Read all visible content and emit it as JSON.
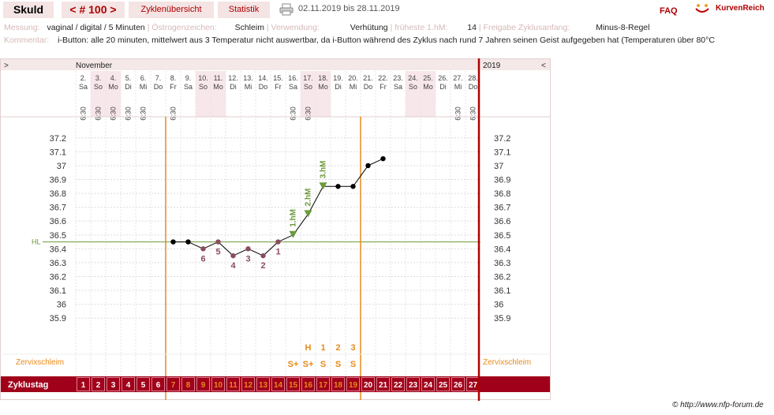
{
  "header": {
    "user": "Skuld",
    "cycle_nav": "< # 100 >",
    "nav": {
      "overview": "Zyklenübersicht",
      "stats": "Statistik"
    },
    "date_range": "02.11.2019 bis 28.11.2019",
    "faq": "FAQ",
    "brand": "KurvenReich"
  },
  "info": {
    "messung_label": "Messung:",
    "messung_value": "vaginal / digital / 5 Minuten",
    "oestrogen_label": "Östrogenzeichen:",
    "oestrogen_value": "Schleim",
    "verwendung_label": "Verwendung:",
    "verwendung_value": "Verhütung",
    "hm_label": "früheste 1.hM:",
    "hm_value": "14",
    "freigabe_label": "Freigabe Zyklusanfang:",
    "freigabe_value": "Minus-8-Regel",
    "kommentar_label": "Kommentar:",
    "kommentar_value": "i-Button: alle 20 minuten, mittelwert aus 3  Temperatur nicht auswertbar, da i-Button während des Zyklus nach rund 7 Jahren seinen Geist aufgegeben hat (Temperaturen über 80°C"
  },
  "chart_data": {
    "type": "line",
    "month_label": "November",
    "year_label": "2019",
    "nav_left": ">",
    "nav_right": "<",
    "days": [
      {
        "date": "2.",
        "wd": "Sa",
        "time": "6:30"
      },
      {
        "date": "3.",
        "wd": "So",
        "time": "6:30"
      },
      {
        "date": "4.",
        "wd": "Mo",
        "time": "6:30"
      },
      {
        "date": "5.",
        "wd": "Di",
        "time": "6:30"
      },
      {
        "date": "6.",
        "wd": "Mi",
        "time": "6:30"
      },
      {
        "date": "7.",
        "wd": "Do",
        "time": ""
      },
      {
        "date": "8.",
        "wd": "Fr",
        "time": "6:30"
      },
      {
        "date": "9.",
        "wd": "Sa",
        "time": ""
      },
      {
        "date": "10.",
        "wd": "So",
        "time": ""
      },
      {
        "date": "11.",
        "wd": "Mo",
        "time": ""
      },
      {
        "date": "12.",
        "wd": "Di",
        "time": ""
      },
      {
        "date": "13.",
        "wd": "Mi",
        "time": ""
      },
      {
        "date": "14.",
        "wd": "Do",
        "time": ""
      },
      {
        "date": "15.",
        "wd": "Fr",
        "time": ""
      },
      {
        "date": "16.",
        "wd": "Sa",
        "time": "6:30"
      },
      {
        "date": "17.",
        "wd": "So",
        "time": "6:30"
      },
      {
        "date": "18.",
        "wd": "Mo",
        "time": ""
      },
      {
        "date": "19.",
        "wd": "Di",
        "time": ""
      },
      {
        "date": "20.",
        "wd": "Mi",
        "time": ""
      },
      {
        "date": "21.",
        "wd": "Do",
        "time": ""
      },
      {
        "date": "22.",
        "wd": "Fr",
        "time": ""
      },
      {
        "date": "23.",
        "wd": "Sa",
        "time": ""
      },
      {
        "date": "24.",
        "wd": "So",
        "time": ""
      },
      {
        "date": "25.",
        "wd": "Mo",
        "time": ""
      },
      {
        "date": "26.",
        "wd": "Di",
        "time": ""
      },
      {
        "date": "27.",
        "wd": "Mi",
        "time": "6:30"
      },
      {
        "date": "28.",
        "wd": "Do",
        "time": "6:30"
      }
    ],
    "weekend_days": [
      1,
      2,
      8,
      9,
      15,
      16,
      22,
      23
    ],
    "y_ticks": [
      "37.2",
      "37.1",
      "37",
      "36.9",
      "36.8",
      "36.7",
      "36.6",
      "36.5",
      "36.4",
      "36.3",
      "36.2",
      "36.1",
      "36",
      "35.9"
    ],
    "ylim": [
      35.85,
      37.25
    ],
    "hl_label": "HL",
    "hl_value": 36.45,
    "series": [
      {
        "values": [
          {
            "day": 7,
            "temp": 36.45
          },
          {
            "day": 8,
            "temp": 36.45
          },
          {
            "day": 9,
            "temp": 36.4
          },
          {
            "day": 10,
            "temp": 36.45
          },
          {
            "day": 11,
            "temp": 36.35
          },
          {
            "day": 12,
            "temp": 36.4
          },
          {
            "day": 13,
            "temp": 36.35
          },
          {
            "day": 14,
            "temp": 36.45
          },
          {
            "day": 15,
            "temp": 36.5
          },
          {
            "day": 16,
            "temp": 36.65
          },
          {
            "day": 17,
            "temp": 36.85
          },
          {
            "day": 18,
            "temp": 36.85
          },
          {
            "day": 19,
            "temp": 36.85
          },
          {
            "day": 20,
            "temp": 37.0
          },
          {
            "day": 21,
            "temp": 37.05
          }
        ]
      }
    ],
    "point_colors": {
      "default": "#000000",
      "low": "#8b4c5c",
      "hm": "#6b9a3c"
    },
    "low_labels": [
      {
        "day": 9,
        "label": "6"
      },
      {
        "day": 10,
        "label": "5"
      },
      {
        "day": 11,
        "label": "4"
      },
      {
        "day": 12,
        "label": "3"
      },
      {
        "day": 13,
        "label": "2"
      },
      {
        "day": 14,
        "label": "1"
      }
    ],
    "hm_labels": [
      {
        "day": 15,
        "label": "1.hM"
      },
      {
        "day": 16,
        "label": "2.hM"
      },
      {
        "day": 17,
        "label": "3.hM"
      }
    ],
    "cycle_markers": [
      {
        "day": 7
      },
      {
        "day": 20
      }
    ],
    "cervix_label": "Zervixschleim",
    "cervix_top": [
      {
        "day": 16,
        "label": "H"
      },
      {
        "day": 17,
        "label": "1"
      },
      {
        "day": 18,
        "label": "2"
      },
      {
        "day": 19,
        "label": "3"
      }
    ],
    "cervix_symbols": [
      {
        "day": 15,
        "label": "S+"
      },
      {
        "day": 16,
        "label": "S+"
      },
      {
        "day": 17,
        "label": "S"
      },
      {
        "day": 18,
        "label": "S"
      },
      {
        "day": 19,
        "label": "S"
      }
    ],
    "cycle_day_label": "Zyklustag",
    "cycle_days": [
      "1",
      "2",
      "3",
      "4",
      "5",
      "6",
      "7",
      "8",
      "9",
      "10",
      "11",
      "12",
      "13",
      "14",
      "15",
      "16",
      "17",
      "18",
      "19",
      "20",
      "21",
      "22",
      "23",
      "24",
      "25",
      "26",
      "27"
    ],
    "orange_days": [
      7,
      8,
      9,
      10,
      11,
      12,
      13,
      14,
      15,
      16,
      17,
      18,
      19
    ],
    "colors": {
      "accent": "#b00000",
      "orange": "#e88a1a",
      "weekend": "#f7e6ea",
      "hl": "#6b9a3c",
      "cycle_bar": "#a0001a"
    }
  },
  "footer": {
    "credit": "© http://www.nfp-forum.de"
  }
}
